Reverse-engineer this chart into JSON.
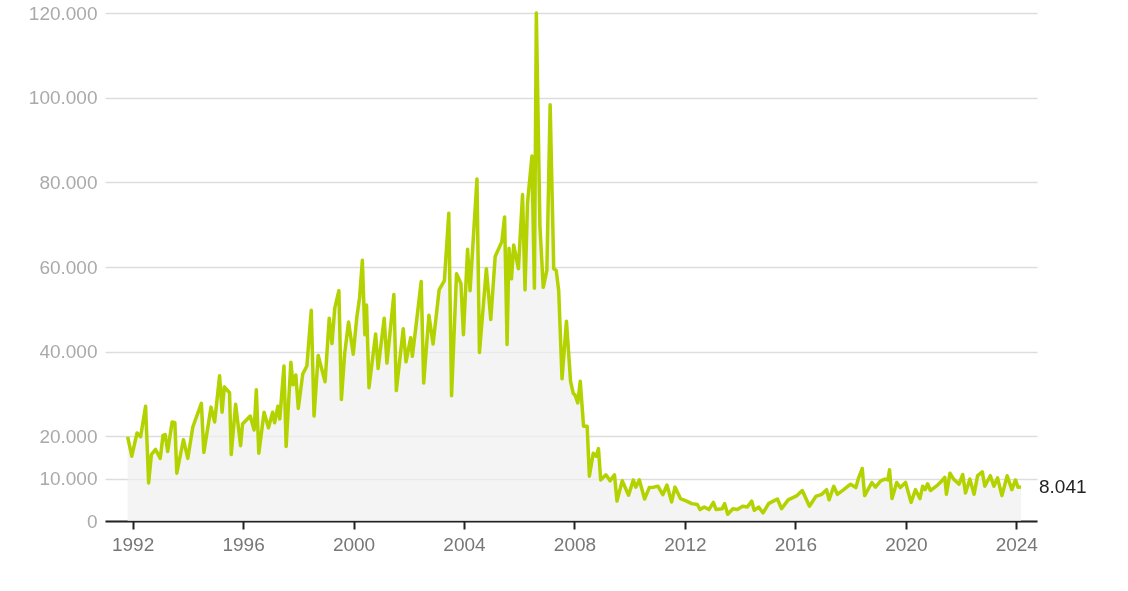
{
  "chart_data": {
    "type": "area",
    "x": [
      1991.82,
      1991.97,
      1992.16,
      1992.29,
      1992.47,
      1992.58,
      1992.68,
      1992.83,
      1993.0,
      1993.1,
      1993.18,
      1993.27,
      1993.43,
      1993.53,
      1993.6,
      1993.84,
      1994.0,
      1994.18,
      1994.49,
      1994.58,
      1994.84,
      1994.97,
      1995.15,
      1995.24,
      1995.32,
      1995.51,
      1995.57,
      1995.73,
      1995.91,
      1995.98,
      1996.26,
      1996.4,
      1996.48,
      1996.57,
      1996.76,
      1996.92,
      1997.07,
      1997.14,
      1997.26,
      1997.33,
      1997.48,
      1997.56,
      1997.73,
      1997.81,
      1997.91,
      1998.0,
      1998.16,
      1998.31,
      1998.47,
      1998.57,
      1998.72,
      1998.97,
      1999.12,
      1999.22,
      1999.32,
      1999.47,
      1999.56,
      1999.68,
      1999.82,
      1999.99,
      2000.12,
      2000.22,
      2000.32,
      2000.41,
      2000.47,
      2000.56,
      2000.8,
      2000.89,
      2001.11,
      2001.21,
      2001.46,
      2001.55,
      2001.8,
      2001.9,
      2002.07,
      2002.13,
      2002.29,
      2002.45,
      2002.54,
      2002.73,
      2002.88,
      2003.1,
      2003.29,
      2003.45,
      2003.55,
      2003.73,
      2003.89,
      2003.98,
      2004.13,
      2004.22,
      2004.47,
      2004.56,
      2004.81,
      2004.97,
      2005.13,
      2005.37,
      2005.47,
      2005.56,
      2005.63,
      2005.72,
      2005.8,
      2005.97,
      2006.12,
      2006.21,
      2006.3,
      2006.46,
      2006.55,
      2006.62,
      2006.75,
      2006.87,
      2007.0,
      2007.12,
      2007.25,
      2007.34,
      2007.43,
      2007.55,
      2007.71,
      2007.86,
      2007.96,
      2008.02,
      2008.12,
      2008.21,
      2008.33,
      2008.46,
      2008.54,
      2008.68,
      2008.79,
      2008.87,
      2008.95,
      2009.14,
      2009.29,
      2009.45,
      2009.54,
      2009.73,
      2009.96,
      2010.13,
      2010.22,
      2010.35,
      2010.54,
      2010.71,
      2010.87,
      2011.03,
      2011.2,
      2011.35,
      2011.52,
      2011.64,
      2011.84,
      2012.06,
      2012.25,
      2012.45,
      2012.55,
      2012.7,
      2012.87,
      2013.03,
      2013.13,
      2013.35,
      2013.44,
      2013.55,
      2013.74,
      2013.9,
      2014.09,
      2014.26,
      2014.42,
      2014.51,
      2014.67,
      2014.83,
      2015.03,
      2015.2,
      2015.35,
      2015.5,
      2015.74,
      2016.06,
      2016.25,
      2016.51,
      2016.74,
      2016.96,
      2017.13,
      2017.22,
      2017.39,
      2017.52,
      2017.75,
      2018.0,
      2018.19,
      2018.29,
      2018.42,
      2018.51,
      2018.77,
      2018.9,
      2019.09,
      2019.24,
      2019.35,
      2019.41,
      2019.5,
      2019.67,
      2019.8,
      2019.99,
      2020.19,
      2020.35,
      2020.51,
      2020.61,
      2020.7,
      2020.79,
      2020.89,
      2021.15,
      2021.28,
      2021.41,
      2021.47,
      2021.6,
      2021.73,
      2021.93,
      2022.06,
      2022.16,
      2022.32,
      2022.47,
      2022.6,
      2022.77,
      2022.86,
      2023.06,
      2023.19,
      2023.32,
      2023.48,
      2023.67,
      2023.84,
      2023.97,
      2024.06,
      2024.17
    ],
    "series": [
      {
        "color": "#b4d200",
        "values": [
          19900,
          15300,
          20800,
          19900,
          27100,
          9000,
          15700,
          16900,
          14800,
          20200,
          20400,
          16400,
          23400,
          23200,
          11300,
          19200,
          14800,
          22200,
          27800,
          16200,
          26900,
          23400,
          34300,
          25700,
          31700,
          30300,
          15700,
          27600,
          17800,
          22900,
          24800,
          21500,
          31000,
          16000,
          25700,
          22000,
          25700,
          23200,
          27100,
          24100,
          36600,
          17600,
          37500,
          32200,
          34500,
          26600,
          34700,
          36600,
          49800,
          24800,
          39100,
          32900,
          47900,
          41900,
          50300,
          54400,
          28700,
          39600,
          47000,
          39400,
          48200,
          52800,
          61600,
          44000,
          51000,
          31500,
          44200,
          36000,
          47900,
          37300,
          53500,
          30800,
          45400,
          37600,
          43300,
          38900,
          47600,
          56600,
          32600,
          48600,
          41800,
          54600,
          56800,
          72700,
          29600,
          58400,
          56100,
          44000,
          64200,
          54400,
          80800,
          39800,
          59600,
          47600,
          62500,
          66000,
          71800,
          41700,
          64400,
          57200,
          65200,
          59600,
          77100,
          54600,
          75100,
          86200,
          55000,
          120000,
          69600,
          55200,
          59200,
          98300,
          59600,
          59200,
          54400,
          33600,
          47200,
          32900,
          30100,
          29800,
          27900,
          33000,
          22400,
          22400,
          10600,
          16000,
          15300,
          17100,
          9700,
          10900,
          9500,
          10900,
          4700,
          9500,
          6100,
          9700,
          8000,
          9700,
          5200,
          7900,
          8000,
          8200,
          6200,
          8500,
          4500,
          8000,
          5300,
          4700,
          4100,
          3900,
          2700,
          3300,
          2700,
          4400,
          2700,
          2900,
          4100,
          1600,
          2900,
          2700,
          3500,
          3300,
          4700,
          2500,
          3300,
          1900,
          4100,
          4700,
          5200,
          2900,
          5000,
          6000,
          7200,
          3500,
          5800,
          6300,
          7400,
          5000,
          8200,
          6300,
          7400,
          8700,
          7900,
          10200,
          12400,
          6000,
          9100,
          8000,
          9500,
          9900,
          9700,
          12100,
          5300,
          9100,
          7900,
          9100,
          4400,
          7400,
          5300,
          8200,
          7400,
          8800,
          7200,
          8500,
          9300,
          10300,
          6300,
          11300,
          9900,
          8700,
          11000,
          6600,
          9900,
          6300,
          10700,
          11600,
          8200,
          10700,
          8200,
          10200,
          6000,
          10700,
          7400,
          9700,
          8000,
          8041
        ]
      }
    ],
    "xlim": [
      1991,
      2024.75
    ],
    "xticks": [
      1992,
      1996,
      2000,
      2004,
      2008,
      2012,
      2016,
      2020,
      2024
    ],
    "ylim": [
      0,
      120000
    ],
    "yticks": [
      0,
      {
        "value": 10000,
        "label": "10.000"
      },
      {
        "value": 20000,
        "label": "20.000"
      },
      {
        "value": 40000,
        "label": "40.000"
      },
      {
        "value": 60000,
        "label": "60.000"
      },
      {
        "value": 80000,
        "label": "80.000"
      },
      {
        "value": 100000,
        "label": "100.000"
      },
      {
        "value": 120000,
        "label": "120.000"
      }
    ],
    "grid": "y",
    "annotations": [
      {
        "text": "8.041",
        "x": 2024.17,
        "y": 8041
      }
    ]
  }
}
